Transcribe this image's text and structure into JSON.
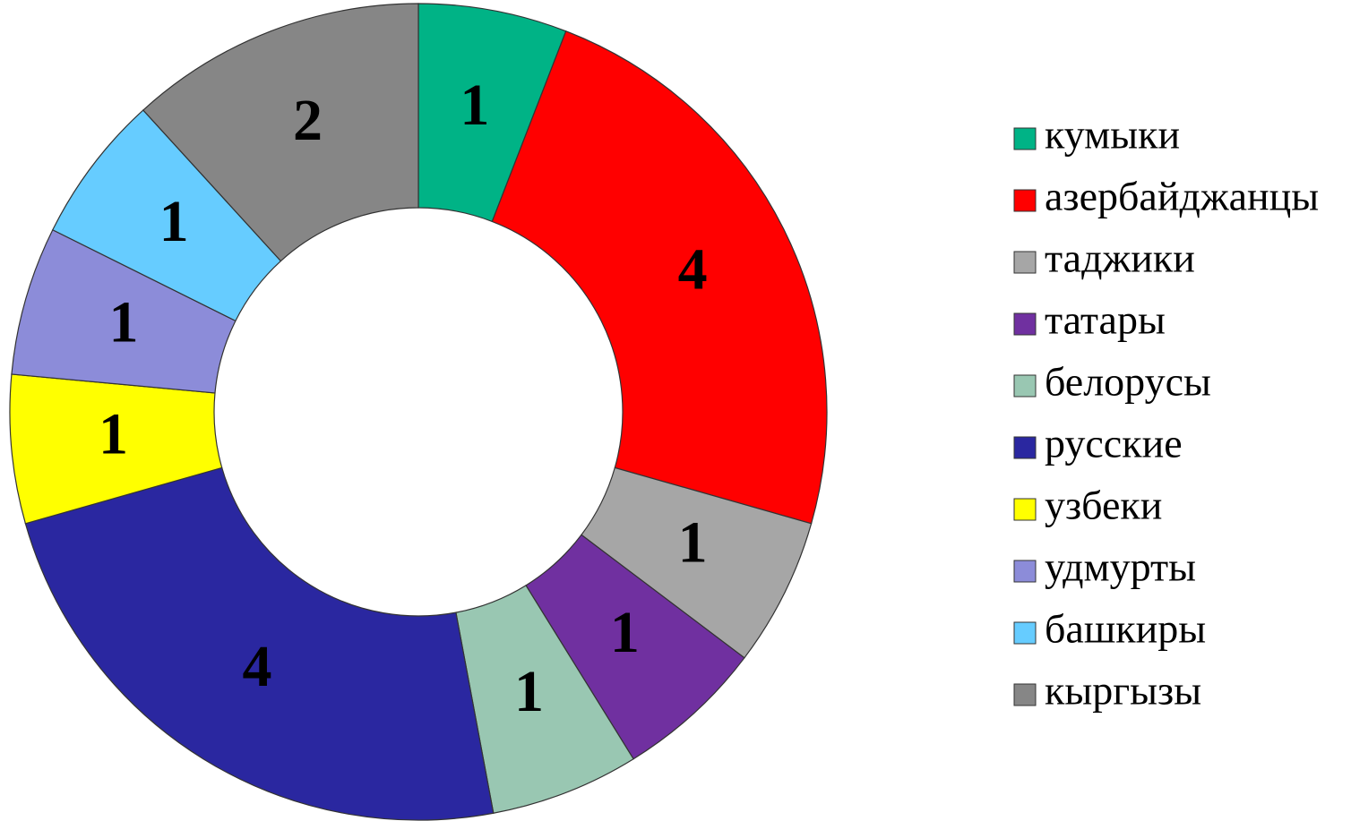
{
  "chart_data": {
    "type": "donut",
    "categories": [
      "кумыки",
      "азербайджанцы",
      "таджики",
      "татары",
      "белорусы",
      "русские",
      "узбеки",
      "удмурты",
      "башкиры",
      "кыргызы"
    ],
    "values": [
      1,
      4,
      1,
      1,
      1,
      4,
      1,
      1,
      1,
      2
    ],
    "colors": [
      "#00b386",
      "#ff0000",
      "#a6a6a6",
      "#7030a0",
      "#99c7b2",
      "#2a27a0",
      "#ffff00",
      "#8c8cd9",
      "#66ccff",
      "#868686"
    ],
    "legend": "right"
  }
}
